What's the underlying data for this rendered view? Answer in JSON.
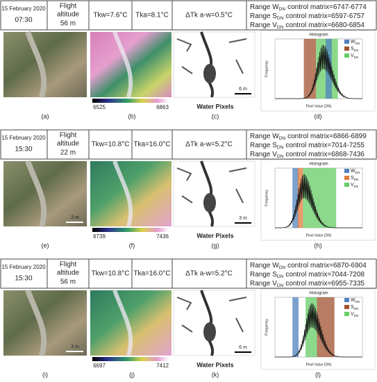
{
  "rows": [
    {
      "date": "15 February 2020",
      "time": "07:30",
      "flight": [
        "Flight",
        "altitude"
      ],
      "altitude": "56 m",
      "tkw": "Tkw=7.6°C",
      "tka": "Tka=8.1°C",
      "dtk": "ΔTk a-w=0.5°C",
      "ranges": [
        {
          "prefix": "Range",
          "letter": "W",
          "sub": "DN",
          "text": "control matrix=6747-6774"
        },
        {
          "prefix": "Range",
          "letter": "S",
          "sub": "DN",
          "text": "control matrix=6597-6757"
        },
        {
          "prefix": "Range",
          "letter": "V",
          "sub": "DN",
          "text": "control matrix=6680-6854"
        }
      ],
      "colorbar": [
        6525,
        6863
      ],
      "water_label": "Water Pixels",
      "water_scale": "6 m",
      "histogram": {
        "title": "Histogram",
        "ylabel": "Frequency",
        "xlabel": "Pixel Value (DN)",
        "legend": [
          {
            "letter": "W",
            "sub": "DN",
            "color": "#4f81bd"
          },
          {
            "letter": "S",
            "sub": "DN",
            "color": "#a0522d"
          },
          {
            "letter": "V",
            "sub": "DN",
            "color": "#66cc66"
          }
        ]
      },
      "labels": [
        "(a)",
        "(b)",
        "(c)",
        "(d)"
      ]
    },
    {
      "date": "15 February 2020",
      "time": "15:30",
      "flight": [
        "Flight",
        "altitude"
      ],
      "altitude": "22 m",
      "tkw": "Tkw=10.8°C",
      "tka": "Tka=16.0°C",
      "dtk": "ΔTk a-w=5.2°C",
      "ranges": [
        {
          "prefix": "Range",
          "letter": "W",
          "sub": "DN",
          "text": "control matrix=6866-6899"
        },
        {
          "prefix": "Range",
          "letter": "S",
          "sub": "DN",
          "text": "control matrix=7014-7255"
        },
        {
          "prefix": "Range",
          "letter": "V",
          "sub": "DN",
          "text": "control matrix=6868-7436"
        }
      ],
      "photo_scale": "3 m",
      "colorbar": [
        6739,
        7436
      ],
      "water_label": "Water Pixels",
      "water_scale": "3 m",
      "histogram": {
        "title": "Histogram",
        "ylabel": "Frequency",
        "xlabel": "Pixel Value (DN)",
        "legend": [
          {
            "letter": "W",
            "sub": "DN",
            "color": "#4f81bd"
          },
          {
            "letter": "S",
            "sub": "DN",
            "color": "#e07b39"
          },
          {
            "letter": "V",
            "sub": "DN",
            "color": "#66cc66"
          }
        ]
      },
      "labels": [
        "(e)",
        "(f)",
        "(g)",
        "(h)"
      ]
    },
    {
      "date": "15 February 2020",
      "time": "15:30",
      "flight": [
        "Flight",
        "altitude"
      ],
      "altitude": "56 m",
      "tkw": "Tkw=10.8°C",
      "tka": "Tka=16.0°C",
      "dtk": "ΔTk a-w=5.2°C",
      "ranges": [
        {
          "prefix": "Range",
          "letter": "W",
          "sub": "DN",
          "text": "control matrix=6870-6904"
        },
        {
          "prefix": "Range",
          "letter": "S",
          "sub": "DN",
          "text": "control matrix=7044-7208"
        },
        {
          "prefix": "Range",
          "letter": "V",
          "sub": "DN",
          "text": "control matrix=6955-7335"
        }
      ],
      "photo_scale": "3 m",
      "colorbar": [
        6697,
        7412
      ],
      "water_label": "Water Pixels",
      "water_scale": "6 m",
      "histogram": {
        "title": "Histogram",
        "ylabel": "Frequency",
        "xlabel": "Pixel Value (DN)",
        "legend": [
          {
            "letter": "W",
            "sub": "DN",
            "color": "#4f81bd"
          },
          {
            "letter": "S",
            "sub": "DN",
            "color": "#a0522d"
          },
          {
            "letter": "V",
            "sub": "DN",
            "color": "#66cc66"
          }
        ]
      },
      "labels": [
        "(i)",
        "(j)",
        "(k)",
        "(l)"
      ]
    }
  ]
}
